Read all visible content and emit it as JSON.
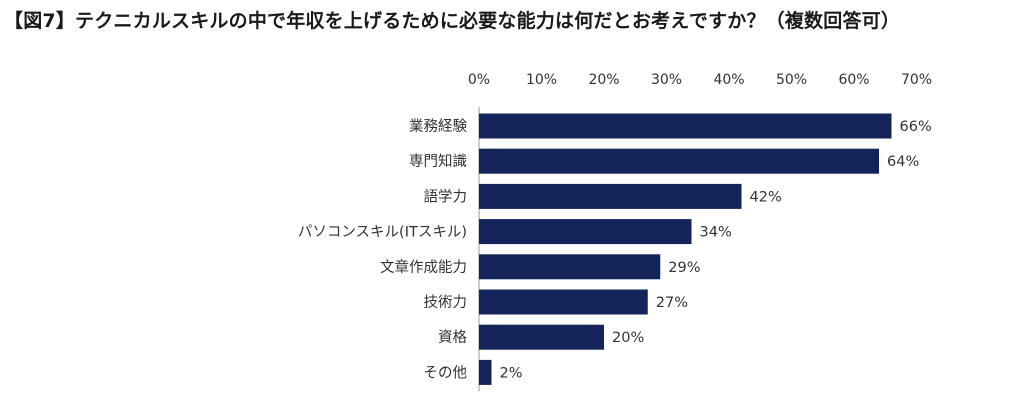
{
  "title": "【図7】テクニカルスキルの中で年収を上げるために必要な能力は何だとお考えですか？（複数回答可）",
  "chart_data": {
    "type": "bar",
    "orientation": "horizontal",
    "title": "【図7】テクニカルスキルの中で年収を上げるために必要な能力は何だとお考えですか？（複数回答可）",
    "xlabel": "",
    "ylabel": "",
    "xlim": [
      0,
      70
    ],
    "x_ticks": [
      "0%",
      "10%",
      "20%",
      "30%",
      "40%",
      "50%",
      "60%",
      "70%"
    ],
    "x_axis_position": "top",
    "grid": false,
    "bar_color": "#14235a",
    "categories": [
      "業務経験",
      "専門知識",
      "語学力",
      "パソコンスキル(ITスキル)",
      "文章作成能力",
      "技術力",
      "資格",
      "その他"
    ],
    "values": [
      66,
      64,
      42,
      34,
      29,
      27,
      20,
      2
    ],
    "value_labels": [
      "66%",
      "64%",
      "42%",
      "34%",
      "29%",
      "27%",
      "20%",
      "2%"
    ]
  }
}
